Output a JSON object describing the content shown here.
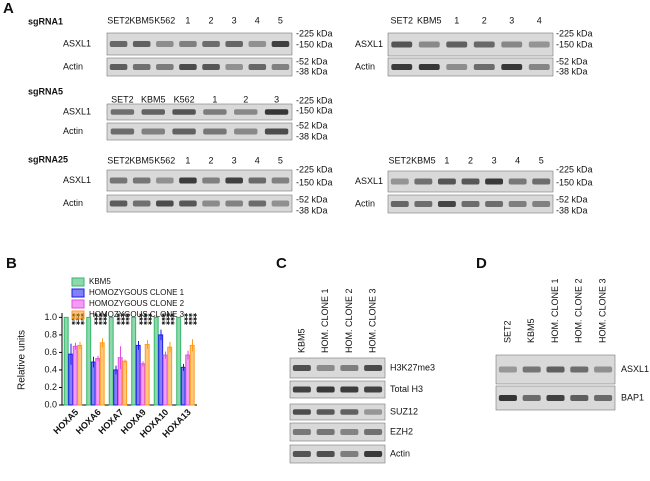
{
  "panel_labels": [
    "A",
    "B",
    "C",
    "D"
  ],
  "blots_a": [
    {
      "title": "sgRNA1",
      "lanes": [
        "SET2",
        "KBM5",
        "K562",
        "1",
        "2",
        "3",
        "4",
        "5"
      ],
      "rows": [
        "ASXL1",
        "Actin"
      ],
      "markers": [
        "-225 kDa",
        "-150 kDa",
        "-52 kDa",
        "-38 kDa"
      ]
    },
    {
      "lanes": [
        "SET2",
        "KBM5",
        "1",
        "2",
        "3",
        "4"
      ],
      "rows": [
        "ASXL1",
        "Actin"
      ],
      "markers": [
        "-225 kDa",
        "-150 kDa",
        "-52 kDa",
        "-38 kDa"
      ]
    },
    {
      "title": "sgRNA5",
      "lanes": [
        "SET2",
        "KBM5",
        "K562",
        "1",
        "2",
        "3"
      ],
      "rows": [
        "ASXL1",
        "Actin"
      ],
      "markers": [
        "-225 kDa",
        "-150 kDa",
        "-52 kDa",
        "-38 kDa"
      ]
    },
    {
      "title": "sgRNA25",
      "lanes": [
        "SET2",
        "KBM5",
        "K562",
        "1",
        "2",
        "3",
        "4",
        "5"
      ],
      "rows": [
        "ASXL1",
        "Actin"
      ],
      "markers": [
        "-225 kDa",
        "-150 kDa",
        "-52 kDa",
        "-38 kDa"
      ]
    },
    {
      "lanes": [
        "SET2",
        "KBM5",
        "1",
        "2",
        "3",
        "4",
        "5"
      ],
      "rows": [
        "ASXL1",
        "Actin"
      ],
      "markers": [
        "-225 kDa",
        "-150 kDa",
        "-52 kDa",
        "-38 kDa"
      ]
    }
  ],
  "chart_data": {
    "type": "bar",
    "y_label": "Relative units",
    "categories": [
      "HOXA5",
      "HOXA6",
      "HOXA7",
      "HOXA9",
      "HOXA10",
      "HOXA13"
    ],
    "series": [
      {
        "name": "KBM5",
        "color": "#33b86a",
        "values": [
          1,
          1,
          1,
          1,
          1,
          1
        ],
        "errors": [
          0,
          0,
          0,
          0,
          0,
          0
        ]
      },
      {
        "name": "HOMOZYGOUS CLONE 1",
        "color": "#1a1aee",
        "values": [
          0.58,
          0.49,
          0.4,
          0.68,
          0.8,
          0.43
        ],
        "errors": [
          0.12,
          0.06,
          0.05,
          0.05,
          0.06,
          0.04
        ],
        "stars": [
          "***",
          "***",
          "***",
          "***",
          "***",
          "***"
        ]
      },
      {
        "name": "HOMOZYGOUS CLONE 2",
        "color": "#e64ce6",
        "values": [
          0.67,
          0.53,
          0.54,
          0.47,
          0.57,
          0.57
        ],
        "errors": [
          0.04,
          0.03,
          0.13,
          0.03,
          0.04,
          0.05
        ],
        "stars": [
          "***",
          "***",
          "***",
          "***",
          "***",
          "***"
        ]
      },
      {
        "name": "HOMOZYGOUS CLONE 3",
        "color": "#ff9a1a",
        "values": [
          0.68,
          0.71,
          0.5,
          0.69,
          0.66,
          0.68
        ],
        "errors": [
          0.04,
          0.05,
          0.02,
          0.05,
          0.06,
          0.07
        ],
        "stars": [
          "***",
          "***",
          "***",
          "***",
          "***",
          "***"
        ]
      }
    ],
    "ylim": [
      0,
      1.05
    ],
    "yticks": [
      {
        "value": 0,
        "label": "0.0"
      },
      0.2,
      0.4,
      0.6,
      0.8,
      {
        "value": 1,
        "label": "1.0"
      }
    ],
    "legend": "top-left"
  },
  "blot_c": {
    "lanes": [
      "KBM5",
      "HOM. CLONE 1",
      "HOM. CLONE 2",
      "HOM. CLONE 3"
    ],
    "rows": [
      "H3K27me3",
      "Total H3",
      "SUZ12",
      "EZH2",
      "Actin"
    ]
  },
  "blot_d": {
    "lanes": [
      "SET2",
      "KBM5",
      "HOM. CLONE 1",
      "HOM. CLONE 2",
      "HOM. CLONE 3"
    ],
    "rows": [
      "ASXL1",
      "BAP1"
    ]
  }
}
